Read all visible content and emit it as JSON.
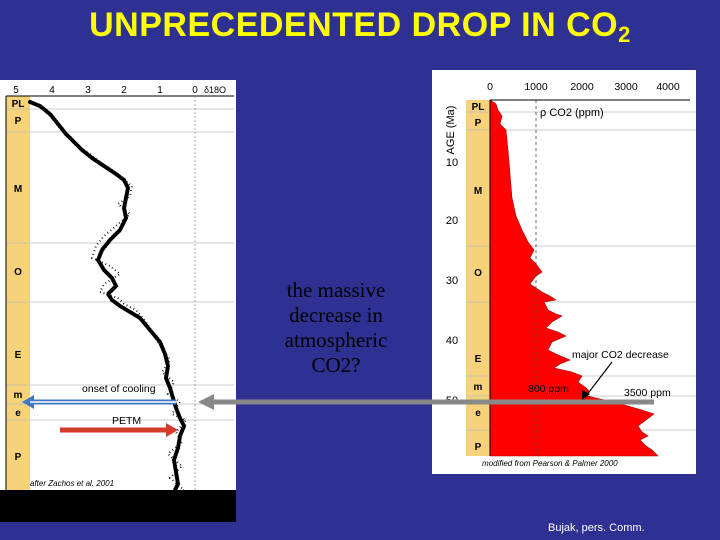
{
  "slide": {
    "title_main": "UNPRECEDENTED DROP IN CO",
    "title_sub": "2",
    "question": "the massive decrease in atmospheric CO2?",
    "credit": "Bujak, pers. Comm."
  },
  "left_chart": {
    "axis_ticks": [
      "5",
      "4",
      "3",
      "2",
      "1",
      "0"
    ],
    "axis_label": "δ18O",
    "epochs": [
      "PL",
      "P",
      "M",
      "O",
      "E",
      "m",
      "e",
      "P"
    ],
    "onset_label": "onset of cooling",
    "petm_label": "PETM",
    "source": "after Zachos et al. 2001",
    "colors": {
      "epoch_band": "#f6d27a",
      "onset_arrow": "#3e77c4",
      "petm_arrow": "#d63a2a"
    }
  },
  "right_chart": {
    "axis_top_ticks": [
      "0",
      "1000",
      "2000",
      "3000",
      "4000"
    ],
    "axis_left_title": "AGE (Ma)",
    "age_ticks": [
      "10",
      "20",
      "30",
      "40",
      "50"
    ],
    "series_label": "ρ CO2 (ppm)",
    "epochs": [
      "PL",
      "P",
      "M",
      "O",
      "E",
      "m",
      "e",
      "P"
    ],
    "annotation_decrease": "major CO2 decrease",
    "annotation_800": "800 ppm",
    "annotation_3500": "3500 ppm",
    "source": "modified from Pearson & Palmer 2000",
    "colors": {
      "co2_fill": "#ff0000",
      "epoch_band": "#f6d27a"
    }
  },
  "connector": {
    "color": "#888888"
  }
}
